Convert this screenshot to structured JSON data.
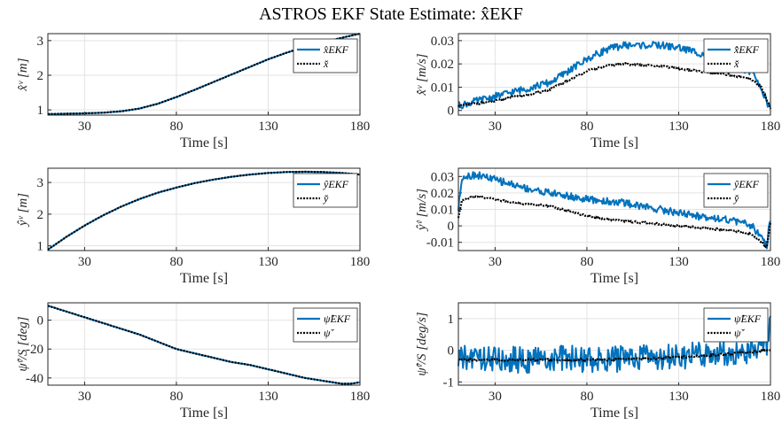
{
  "figure_title": "ASTROS EKF State Estimate: x̂EKF",
  "chart_data": [
    {
      "type": "line",
      "panel": "x-position",
      "xlabel": "Time [s]",
      "ylabel": "x̂ᵛ [m]",
      "xlim": [
        10,
        180
      ],
      "ylim": [
        0.85,
        3.2
      ],
      "xticks": [
        "30",
        "80",
        "130",
        "180"
      ],
      "yticks": [
        "1",
        "2",
        "3"
      ],
      "grid": true,
      "legend_position": "top-right",
      "series": [
        {
          "name": "x̂EKF",
          "color": "#0072BD",
          "style": "solid",
          "x": [
            10,
            20,
            30,
            40,
            50,
            60,
            70,
            80,
            90,
            100,
            110,
            120,
            130,
            140,
            150,
            160,
            170,
            180
          ],
          "values": [
            0.88,
            0.89,
            0.9,
            0.92,
            0.96,
            1.04,
            1.18,
            1.37,
            1.58,
            1.8,
            2.02,
            2.24,
            2.46,
            2.65,
            2.82,
            2.95,
            3.08,
            3.2
          ]
        },
        {
          "name": "x̌",
          "color": "#000000",
          "style": "dotted",
          "x": [
            10,
            20,
            30,
            40,
            50,
            60,
            70,
            80,
            90,
            100,
            110,
            120,
            130,
            140,
            150,
            160,
            170,
            180
          ],
          "values": [
            0.88,
            0.89,
            0.9,
            0.92,
            0.96,
            1.04,
            1.18,
            1.37,
            1.58,
            1.8,
            2.02,
            2.24,
            2.46,
            2.65,
            2.82,
            2.95,
            3.08,
            3.2
          ]
        }
      ]
    },
    {
      "type": "line",
      "panel": "x-velocity",
      "xlabel": "Time [s]",
      "ylabel": "x̂̇ᵛ [m/s]",
      "xlim": [
        10,
        180
      ],
      "ylim": [
        -0.002,
        0.033
      ],
      "xticks": [
        "30",
        "80",
        "130",
        "180"
      ],
      "yticks": [
        "0",
        "0.01",
        "0.02",
        "0.03"
      ],
      "grid": true,
      "legend_position": "top-right",
      "series": [
        {
          "name": "x̂̇EKF",
          "color": "#0072BD",
          "style": "solid",
          "x": [
            10,
            20,
            30,
            40,
            50,
            60,
            70,
            80,
            90,
            100,
            110,
            120,
            130,
            140,
            150,
            160,
            170,
            175,
            180
          ],
          "values": [
            0.002,
            0.004,
            0.006,
            0.008,
            0.01,
            0.012,
            0.017,
            0.022,
            0.026,
            0.028,
            0.028,
            0.028,
            0.027,
            0.025,
            0.023,
            0.02,
            0.016,
            0.01,
            0.0
          ]
        },
        {
          "name": "x̌̇",
          "color": "#000000",
          "style": "dotted",
          "x": [
            10,
            20,
            30,
            40,
            50,
            60,
            70,
            80,
            90,
            100,
            110,
            120,
            130,
            140,
            150,
            160,
            170,
            175,
            180
          ],
          "values": [
            0.002,
            0.003,
            0.004,
            0.006,
            0.007,
            0.009,
            0.013,
            0.017,
            0.019,
            0.02,
            0.0195,
            0.019,
            0.018,
            0.017,
            0.016,
            0.015,
            0.013,
            0.01,
            0.001
          ]
        }
      ]
    },
    {
      "type": "line",
      "panel": "y-position",
      "xlabel": "Time [s]",
      "ylabel": "ŷᵛ [m]",
      "xlim": [
        10,
        180
      ],
      "ylim": [
        0.85,
        3.45
      ],
      "xticks": [
        "30",
        "80",
        "130",
        "180"
      ],
      "yticks": [
        "1",
        "2",
        "3"
      ],
      "grid": true,
      "legend_position": "top-right",
      "series": [
        {
          "name": "ŷEKF",
          "color": "#0072BD",
          "style": "solid",
          "x": [
            10,
            20,
            30,
            40,
            50,
            60,
            70,
            80,
            90,
            100,
            110,
            120,
            130,
            140,
            150,
            160,
            170,
            180
          ],
          "values": [
            0.88,
            1.28,
            1.64,
            1.96,
            2.24,
            2.48,
            2.68,
            2.84,
            2.98,
            3.09,
            3.18,
            3.25,
            3.3,
            3.33,
            3.34,
            3.33,
            3.3,
            3.25
          ]
        },
        {
          "name": "y̌",
          "color": "#000000",
          "style": "dotted",
          "x": [
            10,
            20,
            30,
            40,
            50,
            60,
            70,
            80,
            90,
            100,
            110,
            120,
            130,
            140,
            150,
            160,
            170,
            180
          ],
          "values": [
            0.88,
            1.28,
            1.64,
            1.96,
            2.24,
            2.48,
            2.68,
            2.84,
            2.98,
            3.09,
            3.18,
            3.25,
            3.3,
            3.33,
            3.34,
            3.33,
            3.3,
            3.25
          ]
        }
      ]
    },
    {
      "type": "line",
      "panel": "y-velocity",
      "xlabel": "Time [s]",
      "ylabel": "ŷ̇ᵛ [m/s]",
      "xlim": [
        10,
        180
      ],
      "ylim": [
        -0.015,
        0.035
      ],
      "xticks": [
        "30",
        "80",
        "130",
        "180"
      ],
      "yticks": [
        "-0.01",
        "0",
        "0.01",
        "0.02",
        "0.03"
      ],
      "grid": true,
      "legend_position": "top-right",
      "series": [
        {
          "name": "ŷ̇EKF",
          "color": "#0072BD",
          "style": "solid",
          "x": [
            10,
            12,
            20,
            30,
            40,
            50,
            60,
            70,
            80,
            90,
            100,
            110,
            120,
            130,
            140,
            150,
            160,
            170,
            178,
            180
          ],
          "values": [
            0.01,
            0.03,
            0.031,
            0.028,
            0.025,
            0.022,
            0.02,
            0.018,
            0.016,
            0.015,
            0.014,
            0.012,
            0.01,
            0.008,
            0.006,
            0.005,
            0.003,
            0.0,
            -0.012,
            0.005
          ]
        },
        {
          "name": "y̌̇",
          "color": "#000000",
          "style": "dotted",
          "x": [
            10,
            12,
            20,
            30,
            40,
            50,
            60,
            70,
            80,
            90,
            100,
            110,
            120,
            130,
            140,
            150,
            160,
            170,
            178,
            180
          ],
          "values": [
            0.005,
            0.016,
            0.018,
            0.016,
            0.014,
            0.013,
            0.012,
            0.009,
            0.006,
            0.004,
            0.003,
            0.002,
            0.001,
            0.0,
            -0.001,
            -0.002,
            -0.003,
            -0.005,
            -0.013,
            0.002
          ]
        }
      ]
    },
    {
      "type": "line",
      "panel": "heading",
      "xlabel": "Time [s]",
      "ylabel": "ψ̂ᵛ/S [deg]",
      "xlim": [
        10,
        180
      ],
      "ylim": [
        -45,
        12
      ],
      "xticks": [
        "30",
        "80",
        "130",
        "180"
      ],
      "yticks": [
        "-40",
        "-20",
        "0"
      ],
      "grid": true,
      "legend_position": "top-right",
      "series": [
        {
          "name": "ψ̂EKF",
          "color": "#0072BD",
          "style": "solid",
          "x": [
            10,
            20,
            30,
            40,
            50,
            60,
            70,
            80,
            90,
            100,
            110,
            120,
            130,
            140,
            150,
            160,
            170,
            175,
            180
          ],
          "values": [
            10,
            6,
            2,
            -2,
            -6,
            -10,
            -15,
            -20,
            -23,
            -26,
            -29,
            -31,
            -34,
            -37,
            -40,
            -42,
            -44,
            -44,
            -43
          ]
        },
        {
          "name": "ψ̌",
          "color": "#000000",
          "style": "dotted",
          "x": [
            10,
            20,
            30,
            40,
            50,
            60,
            70,
            80,
            90,
            100,
            110,
            120,
            130,
            140,
            150,
            160,
            170,
            175,
            180
          ],
          "values": [
            10,
            6,
            2,
            -2,
            -6,
            -10,
            -15,
            -20,
            -23,
            -26,
            -29,
            -31,
            -34,
            -37,
            -40,
            -42,
            -44,
            -44,
            -43
          ]
        }
      ]
    },
    {
      "type": "line",
      "panel": "heading-rate",
      "xlabel": "Time [s]",
      "ylabel": "ψ̂̇ᵛ/S [deg/s]",
      "xlim": [
        10,
        180
      ],
      "ylim": [
        -1.1,
        1.5
      ],
      "xticks": [
        "30",
        "80",
        "130",
        "180"
      ],
      "yticks": [
        "-1",
        "0",
        "1"
      ],
      "grid": true,
      "legend_position": "top-right",
      "series": [
        {
          "name": "ψ̂̇EKF",
          "color": "#0072BD",
          "style": "solid",
          "x": [
            10,
            20,
            30,
            40,
            50,
            60,
            70,
            80,
            90,
            100,
            110,
            120,
            130,
            140,
            150,
            160,
            170,
            178,
            180
          ],
          "values": [
            -0.3,
            -0.2,
            -0.3,
            -0.3,
            -0.3,
            -0.3,
            -0.25,
            -0.3,
            -0.3,
            -0.25,
            -0.2,
            -0.25,
            -0.2,
            -0.15,
            -0.1,
            -0.1,
            0.0,
            0.2,
            1.2
          ]
        },
        {
          "name": "ψ̌̇",
          "color": "#000000",
          "style": "dotted",
          "x": [
            10,
            20,
            30,
            40,
            50,
            60,
            70,
            80,
            90,
            100,
            110,
            120,
            130,
            140,
            150,
            160,
            170,
            178,
            180
          ],
          "values": [
            -0.3,
            -0.3,
            -0.3,
            -0.3,
            -0.3,
            -0.3,
            -0.3,
            -0.3,
            -0.3,
            -0.28,
            -0.27,
            -0.25,
            -0.22,
            -0.18,
            -0.15,
            -0.1,
            -0.05,
            0.0,
            0.0
          ]
        }
      ]
    }
  ]
}
